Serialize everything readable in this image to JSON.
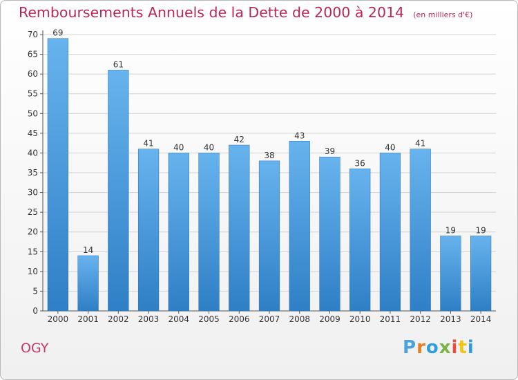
{
  "colors": {
    "title": "#b8265c",
    "bar_light": "#67b3ee",
    "bar_dark": "#2f7fc6",
    "grid": "#d2d2d2"
  },
  "commune": "OGY",
  "logo": {
    "letters": [
      "P",
      "r",
      "o",
      "x",
      "i",
      "t",
      "i"
    ],
    "colors": [
      "#4aa3df",
      "#e67e22",
      "#2e9fd9",
      "#7cb342",
      "#e74c3c",
      "#f1c40f",
      "#3498db"
    ]
  },
  "chart_data": {
    "type": "bar",
    "title": "Remboursements Annuels de la Dette de 2000 à 2014",
    "unit_note": "(en milliers d'€)",
    "xlabel": "",
    "ylabel": "",
    "categories": [
      "2000",
      "2001",
      "2002",
      "2003",
      "2004",
      "2005",
      "2006",
      "2007",
      "2008",
      "2009",
      "2010",
      "2011",
      "2012",
      "2013",
      "2014"
    ],
    "values": [
      69,
      14,
      61,
      41,
      40,
      40,
      42,
      38,
      43,
      39,
      36,
      40,
      41,
      19,
      19
    ],
    "ylim": [
      0,
      70
    ],
    "yticks": [
      0,
      5,
      10,
      15,
      20,
      25,
      30,
      35,
      40,
      45,
      50,
      55,
      60,
      65,
      70
    ],
    "grid": true,
    "data_labels": true
  }
}
